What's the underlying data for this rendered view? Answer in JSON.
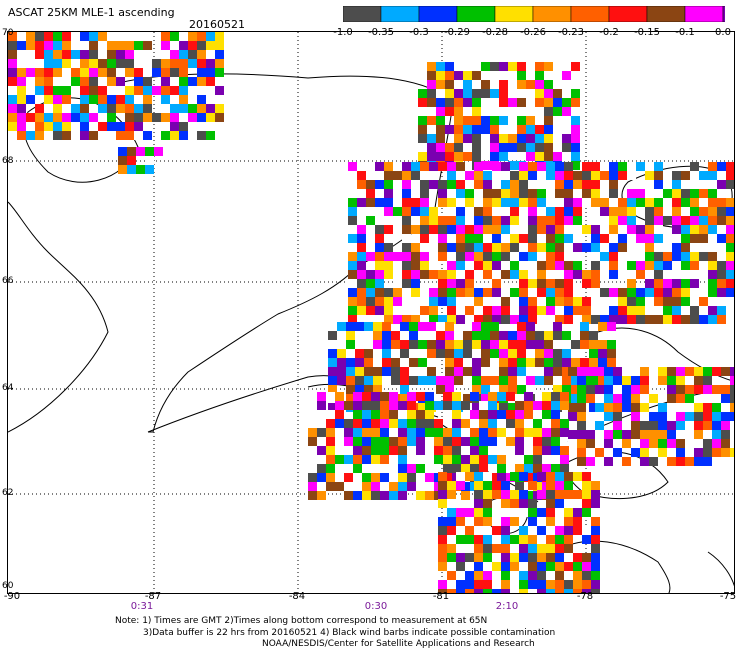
{
  "header": {
    "title": "ASCAT 25KM MLE-1 ascending",
    "date": "20160521"
  },
  "colorbar": {
    "ticks": [
      "-1.0",
      "-0.35",
      "-0.3",
      "-0.29",
      "-0.28",
      "-0.26",
      "-0.23",
      "-0.2",
      "-0.15",
      "-0.1",
      "0.0"
    ],
    "colors": [
      "#4d4d4d",
      "#00aaff",
      "#0030ff",
      "#00c000",
      "#ffe000",
      "#ff9000",
      "#ff6000",
      "#ff1010",
      "#8b4513",
      "#ff00ff",
      "#7a00b0"
    ]
  },
  "map": {
    "lat_labels": [
      "70",
      "68",
      "66",
      "64",
      "62",
      "60"
    ],
    "lon_labels": [
      "-90",
      "-87",
      "-84",
      "-81",
      "-78",
      "-75"
    ],
    "time_labels": [
      "0:31",
      "0:30",
      "2:10"
    ]
  },
  "notes": {
    "line1": "Note: 1) Times are GMT 2)Times along bottom correspond to measurement at 65N",
    "line2": "3)Data buffer is 22 hrs from 20160521 4) Black wind barbs indicate possible contamination",
    "line3": "NOAA/NESDIS/Center for Satellite Applications and Research"
  }
}
